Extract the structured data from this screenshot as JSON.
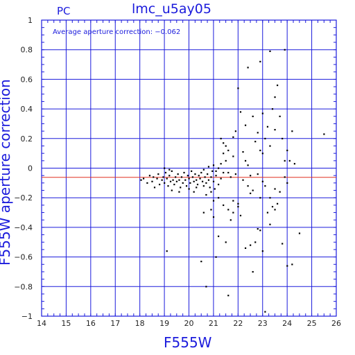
{
  "chart_data": {
    "type": "scatter",
    "title": "lmc_u5ay05",
    "subtitle": "PC",
    "xlabel": "F555W",
    "ylabel": "F555W aperture correction",
    "annotation": "Average aperture correction: −0.062",
    "xlim": [
      14,
      26
    ],
    "ylim": [
      -1,
      1
    ],
    "x_ticks": [
      "14",
      "15",
      "16",
      "17",
      "18",
      "19",
      "20",
      "21",
      "22",
      "23",
      "24",
      "25",
      "26"
    ],
    "y_ticks": [
      "1",
      "0.8",
      "0.6",
      "0.4",
      "0.2",
      "0",
      "−0.2",
      "−0.4",
      "−0.6",
      "−0.8",
      "−1"
    ],
    "grid": true,
    "reference_line": {
      "y": -0.062,
      "color": "#e03020"
    },
    "axis_color": "#1a1adc",
    "point_color": "#000000",
    "points": [
      [
        18.05,
        -0.08
      ],
      [
        18.15,
        -0.07
      ],
      [
        18.3,
        -0.1
      ],
      [
        18.4,
        -0.05
      ],
      [
        18.5,
        -0.09
      ],
      [
        18.55,
        -0.06
      ],
      [
        18.6,
        -0.13
      ],
      [
        18.7,
        -0.07
      ],
      [
        18.75,
        -0.04
      ],
      [
        18.8,
        -0.11
      ],
      [
        18.9,
        -0.08
      ],
      [
        18.95,
        -0.06
      ],
      [
        19.0,
        -0.1
      ],
      [
        19.05,
        -0.03
      ],
      [
        19.1,
        -0.07
      ],
      [
        19.15,
        -0.12
      ],
      [
        19.2,
        -0.05
      ],
      [
        19.25,
        -0.09
      ],
      [
        19.3,
        -0.02
      ],
      [
        19.35,
        -0.08
      ],
      [
        19.4,
        -0.11
      ],
      [
        19.45,
        -0.06
      ],
      [
        19.5,
        -0.09
      ],
      [
        19.55,
        -0.04
      ],
      [
        19.6,
        -0.08
      ],
      [
        19.65,
        -0.13
      ],
      [
        19.7,
        -0.06
      ],
      [
        19.75,
        -0.1
      ],
      [
        19.8,
        -0.03
      ],
      [
        19.85,
        -0.08
      ],
      [
        19.9,
        -0.12
      ],
      [
        19.95,
        -0.05
      ],
      [
        20.0,
        -0.07
      ],
      [
        20.05,
        -0.1
      ],
      [
        20.1,
        -0.02
      ],
      [
        20.15,
        -0.06
      ],
      [
        20.2,
        -0.09
      ],
      [
        20.25,
        -0.04
      ],
      [
        20.3,
        -0.08
      ],
      [
        20.35,
        -0.11
      ],
      [
        20.4,
        -0.05
      ],
      [
        20.45,
        -0.07
      ],
      [
        20.5,
        -0.03
      ],
      [
        20.55,
        -0.09
      ],
      [
        20.6,
        -0.12
      ],
      [
        20.65,
        -0.06
      ],
      [
        20.7,
        -0.1
      ],
      [
        20.75,
        -0.04
      ],
      [
        20.8,
        -0.08
      ],
      [
        20.85,
        -0.13
      ],
      [
        20.9,
        -0.06
      ],
      [
        20.95,
        -0.02
      ],
      [
        21.0,
        -0.09
      ],
      [
        21.05,
        -0.14
      ],
      [
        21.1,
        -0.05
      ],
      [
        21.2,
        -0.11
      ],
      [
        21.3,
        -0.07
      ],
      [
        21.4,
        -0.03
      ],
      [
        19.3,
        -0.15
      ],
      [
        19.6,
        -0.16
      ],
      [
        20.0,
        -0.14
      ],
      [
        20.2,
        -0.16
      ],
      [
        20.7,
        -0.18
      ],
      [
        20.3,
        -0.13
      ],
      [
        19.0,
        0.0
      ],
      [
        19.2,
        -0.01
      ],
      [
        20.6,
        -0.01
      ],
      [
        20.8,
        0.01
      ],
      [
        21.0,
        0.02
      ],
      [
        21.3,
        0.03
      ],
      [
        21.5,
        0.05
      ],
      [
        21.2,
        0.0
      ],
      [
        21.1,
        -0.02
      ],
      [
        20.9,
        -0.16
      ],
      [
        21.6,
        -0.03
      ],
      [
        21.7,
        -0.06
      ],
      [
        21.8,
        0.08
      ],
      [
        21.9,
        -0.04
      ],
      [
        21.4,
        0.17
      ],
      [
        21.5,
        0.15
      ],
      [
        21.3,
        0.2
      ],
      [
        21.4,
        0.1
      ],
      [
        21.6,
        0.12
      ],
      [
        21.8,
        0.21
      ],
      [
        21.9,
        0.25
      ],
      [
        22.0,
        0.54
      ],
      [
        22.1,
        0.38
      ],
      [
        22.3,
        0.29
      ],
      [
        22.4,
        0.68
      ],
      [
        22.2,
        0.11
      ],
      [
        22.3,
        0.05
      ],
      [
        22.4,
        0.02
      ],
      [
        22.5,
        -0.05
      ],
      [
        22.6,
        0.35
      ],
      [
        22.7,
        0.18
      ],
      [
        22.8,
        0.24
      ],
      [
        22.9,
        0.12
      ],
      [
        23.0,
        0.1
      ],
      [
        23.1,
        0.2
      ],
      [
        23.2,
        0.28
      ],
      [
        23.3,
        0.15
      ],
      [
        23.4,
        0.4
      ],
      [
        23.5,
        0.26
      ],
      [
        23.6,
        0.56
      ],
      [
        23.7,
        0.35
      ],
      [
        23.8,
        0.2
      ],
      [
        23.9,
        0.05
      ],
      [
        24.0,
        0.12
      ],
      [
        24.1,
        0.05
      ],
      [
        24.2,
        0.25
      ],
      [
        22.9,
        0.72
      ],
      [
        23.3,
        0.79
      ],
      [
        23.9,
        0.8
      ],
      [
        23.0,
        0.37
      ],
      [
        23.5,
        0.48
      ],
      [
        24.3,
        0.03
      ],
      [
        25.5,
        0.23
      ],
      [
        22.2,
        -0.08
      ],
      [
        22.4,
        -0.12
      ],
      [
        22.6,
        -0.15
      ],
      [
        22.8,
        -0.04
      ],
      [
        23.0,
        -0.09
      ],
      [
        23.1,
        -0.12
      ],
      [
        23.3,
        -0.2
      ],
      [
        23.5,
        -0.14
      ],
      [
        23.7,
        -0.16
      ],
      [
        23.9,
        -0.06
      ],
      [
        24.0,
        -0.1
      ],
      [
        22.5,
        -0.17
      ],
      [
        22.9,
        -0.2
      ],
      [
        21.2,
        -0.2
      ],
      [
        21.4,
        -0.25
      ],
      [
        21.6,
        -0.28
      ],
      [
        21.7,
        -0.35
      ],
      [
        21.8,
        -0.22
      ],
      [
        22.0,
        -0.24
      ],
      [
        22.1,
        -0.32
      ],
      [
        20.6,
        -0.3
      ],
      [
        20.9,
        -0.28
      ],
      [
        21.0,
        -0.33
      ],
      [
        22.3,
        -0.54
      ],
      [
        22.5,
        -0.52
      ],
      [
        22.7,
        -0.5
      ],
      [
        22.6,
        -0.7
      ],
      [
        22.8,
        -0.41
      ],
      [
        22.9,
        -0.42
      ],
      [
        23.2,
        -0.3
      ],
      [
        23.3,
        -0.38
      ],
      [
        23.5,
        -0.28
      ],
      [
        23.8,
        -0.51
      ],
      [
        23.6,
        -0.24
      ],
      [
        23.4,
        -0.26
      ],
      [
        23.0,
        -0.56
      ],
      [
        24.2,
        -0.65
      ],
      [
        24.0,
        -0.66
      ],
      [
        24.5,
        -0.44
      ],
      [
        21.2,
        -0.46
      ],
      [
        21.5,
        -0.5
      ],
      [
        21.1,
        -0.6
      ],
      [
        20.5,
        -0.63
      ],
      [
        20.7,
        -0.8
      ],
      [
        21.6,
        -0.86
      ],
      [
        19.1,
        -0.56
      ],
      [
        23.1,
        -0.97
      ],
      [
        21.0,
        -0.22
      ],
      [
        22.0,
        -0.26
      ],
      [
        21.8,
        -0.3
      ]
    ]
  }
}
